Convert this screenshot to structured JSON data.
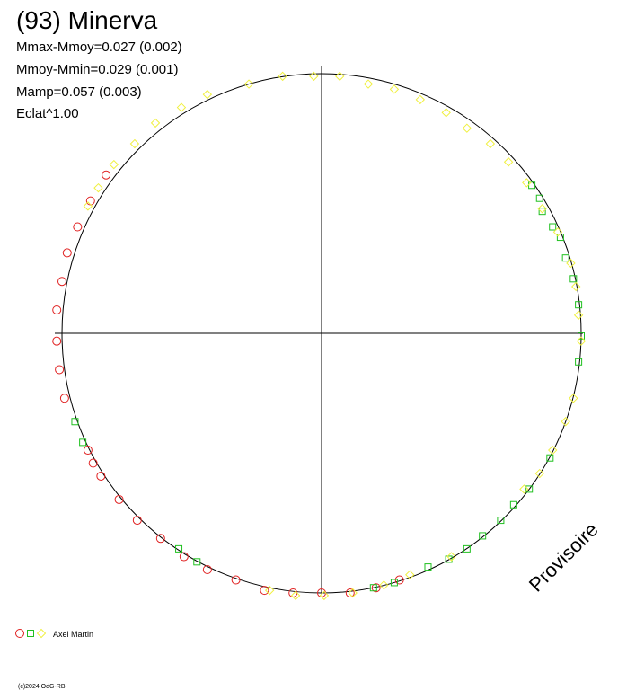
{
  "chart_data": {
    "type": "polar-scatter",
    "title": "(93) Minerva",
    "annotations": [
      "Mmax-Mmoy=0.027 (0.002)",
      "Mmoy-Mmin=0.029 (0.001)",
      "Mamp=0.057 (0.003)",
      "Eclat^1.00"
    ],
    "watermark": "Provisoire",
    "observer": "Axel Martin",
    "footer": "(c)2024 OdG-RB",
    "xlim": [
      -1,
      1
    ],
    "ylim": [
      -1,
      1
    ],
    "series": [
      {
        "marker": "circle",
        "color": "#e02020",
        "x": [
          -0.83,
          -0.89,
          -0.94,
          -0.98,
          -1.0,
          -1.02,
          -1.02,
          -1.01,
          -0.99,
          -0.9,
          -0.88,
          -0.85,
          -0.78,
          -0.71,
          -0.62,
          -0.53,
          -0.44,
          -0.33,
          -0.22,
          -0.11,
          0.0,
          0.11,
          0.21,
          0.3
        ],
        "y": [
          0.61,
          0.51,
          0.41,
          0.31,
          0.2,
          0.09,
          -0.03,
          -0.14,
          -0.25,
          -0.45,
          -0.5,
          -0.55,
          -0.64,
          -0.72,
          -0.79,
          -0.86,
          -0.91,
          -0.95,
          -0.99,
          -1.0,
          -1.0,
          -1.0,
          -0.98,
          -0.95
        ]
      },
      {
        "marker": "square",
        "color": "#20c020",
        "x": [
          0.81,
          0.84,
          0.85,
          0.89,
          0.92,
          0.94,
          0.97,
          0.99,
          1.0,
          0.99,
          0.88,
          0.8,
          0.74,
          0.69,
          0.62,
          0.56,
          0.49,
          0.41,
          0.28,
          0.2,
          -0.95,
          -0.92,
          -0.55,
          -0.48
        ],
        "y": [
          0.57,
          0.52,
          0.47,
          0.41,
          0.37,
          0.29,
          0.21,
          0.11,
          -0.01,
          -0.11,
          -0.48,
          -0.6,
          -0.66,
          -0.72,
          -0.78,
          -0.83,
          -0.87,
          -0.9,
          -0.96,
          -0.98,
          -0.34,
          -0.42,
          -0.83,
          -0.88
        ]
      },
      {
        "marker": "diamond",
        "color": "#f0f040",
        "x": [
          -0.44,
          -0.54,
          -0.64,
          -0.72,
          -0.8,
          -0.86,
          -0.9,
          -0.28,
          -0.15,
          -0.03,
          0.07,
          0.18,
          0.28,
          0.38,
          0.48,
          0.56,
          0.65,
          0.72,
          0.79,
          0.85,
          0.91,
          0.96,
          0.98,
          0.99,
          1.0,
          0.97,
          0.94,
          0.89,
          0.84,
          0.78,
          0.5,
          0.34,
          0.24,
          0.12,
          0.01,
          -0.1,
          -0.2
        ],
        "y": [
          0.92,
          0.87,
          0.81,
          0.73,
          0.65,
          0.56,
          0.49,
          0.96,
          0.99,
          0.99,
          0.99,
          0.96,
          0.94,
          0.9,
          0.85,
          0.79,
          0.73,
          0.66,
          0.58,
          0.48,
          0.39,
          0.27,
          0.18,
          0.07,
          -0.03,
          -0.25,
          -0.34,
          -0.45,
          -0.54,
          -0.6,
          -0.86,
          -0.93,
          -0.97,
          -1.0,
          -1.01,
          -1.01,
          -0.99
        ]
      }
    ]
  }
}
